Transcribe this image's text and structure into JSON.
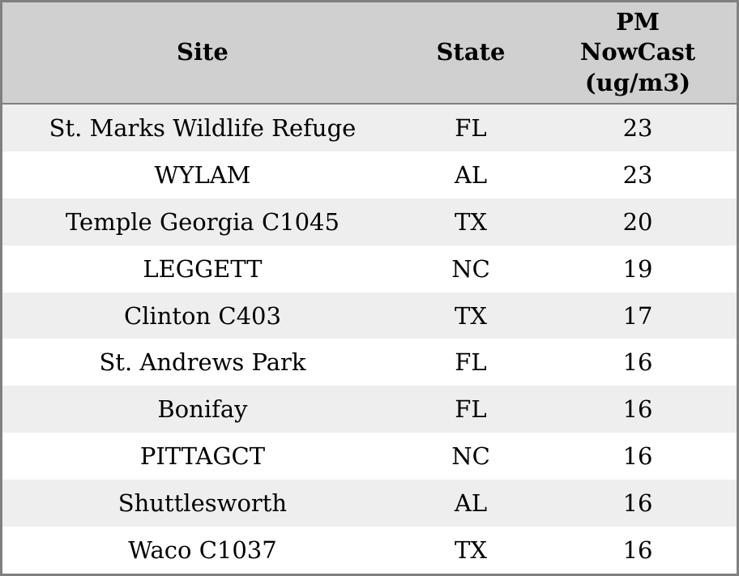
{
  "colors": {
    "header_bg": "#d0d0d0",
    "row_alt_bg": "#eeeeee",
    "row_bg": "#ffffff",
    "border": "#808080",
    "text": "#000000"
  },
  "header": {
    "site": "Site",
    "state": "State",
    "pm_nowcast": "PM\nNowCast\n(ug/m3)"
  },
  "chart_data": {
    "type": "table",
    "columns": [
      "Site",
      "State",
      "PM NowCast (ug/m3)"
    ],
    "rows": [
      [
        "St. Marks Wildlife Refuge",
        "FL",
        23
      ],
      [
        "WYLAM",
        "AL",
        23
      ],
      [
        "Temple Georgia C1045",
        "TX",
        20
      ],
      [
        "LEGGETT",
        "NC",
        19
      ],
      [
        "Clinton C403",
        "TX",
        17
      ],
      [
        "St. Andrews Park",
        "FL",
        16
      ],
      [
        "Bonifay",
        "FL",
        16
      ],
      [
        "PITTAGCT",
        "NC",
        16
      ],
      [
        "Shuttlesworth",
        "AL",
        16
      ],
      [
        "Waco C1037",
        "TX",
        16
      ]
    ]
  }
}
